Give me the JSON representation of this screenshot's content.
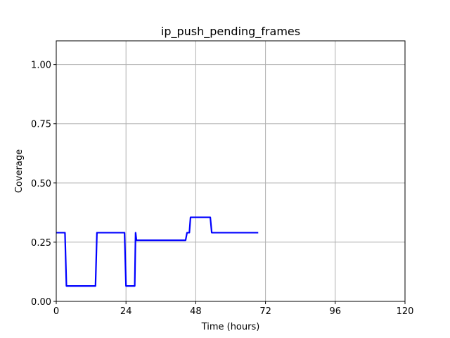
{
  "chart_data": {
    "type": "line",
    "title": "ip_push_pending_frames",
    "xlabel": "Time (hours)",
    "ylabel": "Coverage",
    "xlim": [
      0,
      120
    ],
    "ylim": [
      0,
      1.1
    ],
    "xticks": [
      0,
      24,
      48,
      72,
      96,
      120
    ],
    "xtick_labels": [
      "0",
      "24",
      "48",
      "72",
      "96",
      "120"
    ],
    "yticks": [
      0.0,
      0.25,
      0.5,
      0.75,
      1.0
    ],
    "ytick_labels": [
      "0.00",
      "0.25",
      "0.50",
      "0.75",
      "1.00"
    ],
    "grid": true,
    "series": [
      {
        "color": "#0000ff",
        "x": [
          0,
          3,
          3.5,
          13.5,
          14,
          23.5,
          24,
          27,
          27.3,
          27.6,
          44.5,
          45,
          45.8,
          46.2,
          53,
          53.5,
          69.5
        ],
        "y": [
          0.29,
          0.29,
          0.065,
          0.065,
          0.29,
          0.29,
          0.065,
          0.065,
          0.29,
          0.258,
          0.258,
          0.29,
          0.29,
          0.355,
          0.355,
          0.29,
          0.29
        ]
      }
    ]
  }
}
